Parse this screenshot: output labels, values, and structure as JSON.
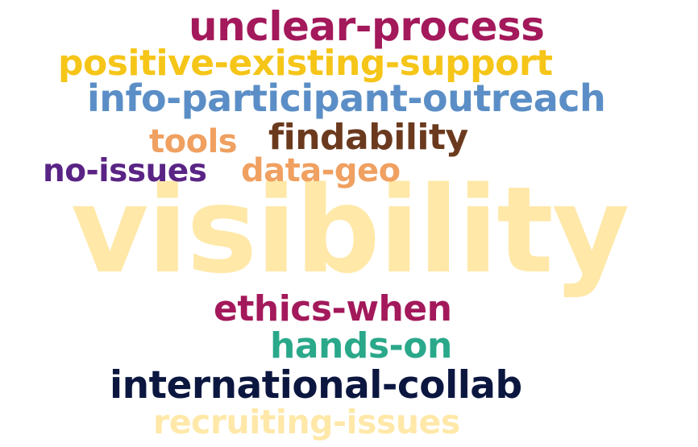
{
  "words": [
    {
      "id": "visibility",
      "text": "visibility",
      "color": "#ffe8a8"
    },
    {
      "id": "unclear",
      "text": "unclear-process",
      "color": "#a3195b"
    },
    {
      "id": "positive",
      "text": "positive-existing-support",
      "color": "#f5c518"
    },
    {
      "id": "info",
      "text": "info-participant-outreach",
      "color": "#5b8ec6"
    },
    {
      "id": "tools",
      "text": "tools",
      "color": "#f0a060"
    },
    {
      "id": "find",
      "text": "findability",
      "color": "#6b3a1e"
    },
    {
      "id": "noissues",
      "text": "no-issues",
      "color": "#5a2485"
    },
    {
      "id": "datageo",
      "text": "data-geo",
      "color": "#f0a060"
    },
    {
      "id": "ethics",
      "text": "ethics-when",
      "color": "#a3195b"
    },
    {
      "id": "hands",
      "text": "hands-on",
      "color": "#2aa88a"
    },
    {
      "id": "intl",
      "text": "international-collab",
      "color": "#0c1740"
    },
    {
      "id": "recruit",
      "text": "recruiting-issues",
      "color": "#ffe8a8"
    }
  ]
}
